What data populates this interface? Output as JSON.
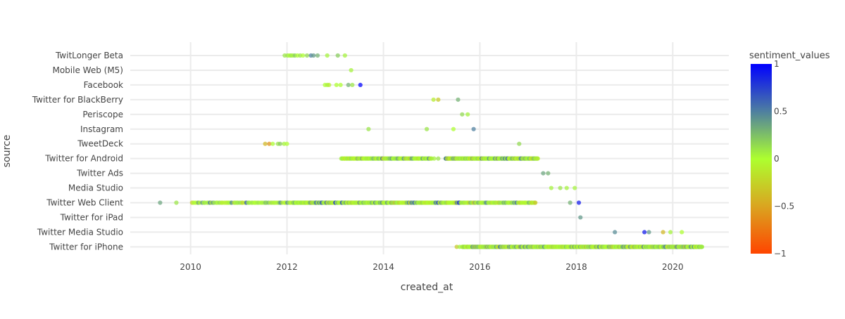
{
  "chart_data": {
    "type": "scatter",
    "title": "",
    "xlabel": "created_at",
    "ylabel": "source",
    "xlim": [
      "2008-10-01",
      "2021-03-01"
    ],
    "xticks": [
      {
        "value": "2010-01-01",
        "label": "2010"
      },
      {
        "value": "2012-01-01",
        "label": "2012"
      },
      {
        "value": "2014-01-01",
        "label": "2014"
      },
      {
        "value": "2016-01-01",
        "label": "2016"
      },
      {
        "value": "2018-01-01",
        "label": "2018"
      },
      {
        "value": "2020-01-01",
        "label": "2020"
      }
    ],
    "categories": [
      "TwitLonger Beta",
      "Mobile Web (M5)",
      "Facebook",
      "Twitter for BlackBerry",
      "Periscope",
      "Instagram",
      "TweetDeck",
      "Twitter for Android",
      "Twitter Ads",
      "Media Studio",
      "Twitter Web Client",
      "Twitter for iPad",
      "Twitter Media Studio",
      "Twitter for iPhone"
    ],
    "grid": true,
    "colorbar": {
      "title": "sentiment_values",
      "range": [
        -1,
        1
      ],
      "ticks": [
        {
          "value": 1,
          "label": "1"
        },
        {
          "value": 0.5,
          "label": "0.5"
        },
        {
          "value": 0,
          "label": "0"
        },
        {
          "value": -0.5,
          "label": "−0.5"
        },
        {
          "value": -1,
          "label": "−1"
        }
      ],
      "colorscale": [
        {
          "stop": -1,
          "color": "#ff4500"
        },
        {
          "stop": -0.5,
          "color": "#daa520"
        },
        {
          "stop": 0,
          "color": "#adff2f"
        },
        {
          "stop": 0.5,
          "color": "#4e7fa0"
        },
        {
          "stop": 1,
          "color": "#0000ff"
        }
      ]
    },
    "series": [
      {
        "category": "TwitLonger Beta",
        "points": [
          [
            "2011-12-15",
            0.1
          ],
          [
            "2012-01-05",
            0.1
          ],
          [
            "2012-01-20",
            0.0
          ],
          [
            "2012-02-01",
            0.1
          ],
          [
            "2012-02-15",
            0.05
          ],
          [
            "2012-03-01",
            0.2
          ],
          [
            "2012-03-20",
            0.0
          ],
          [
            "2012-04-10",
            0.1
          ],
          [
            "2012-05-01",
            0.0
          ],
          [
            "2012-06-01",
            0.15
          ],
          [
            "2012-07-01",
            0.5
          ],
          [
            "2012-07-20",
            0.4
          ],
          [
            "2012-08-20",
            0.3
          ],
          [
            "2012-11-01",
            0.05
          ],
          [
            "2013-01-20",
            0.2
          ],
          [
            "2013-03-15",
            0.05
          ]
        ]
      },
      {
        "category": "Mobile Web (M5)",
        "points": [
          [
            "2013-05-01",
            0.05
          ]
        ]
      },
      {
        "category": "Facebook",
        "points": [
          [
            "2012-10-15",
            0.0
          ],
          [
            "2012-11-01",
            0.05
          ],
          [
            "2012-11-15",
            -0.1
          ],
          [
            "2013-01-10",
            0.0
          ],
          [
            "2013-02-10",
            0.0
          ],
          [
            "2013-04-10",
            0.3
          ],
          [
            "2013-05-10",
            0.1
          ],
          [
            "2013-07-10",
            1.0
          ]
        ]
      },
      {
        "category": "Twitter for BlackBerry",
        "points": [
          [
            "2015-01-15",
            -0.1
          ],
          [
            "2015-02-20",
            -0.3
          ],
          [
            "2015-07-20",
            0.3
          ]
        ]
      },
      {
        "category": "Periscope",
        "points": [
          [
            "2015-08-20",
            0.15
          ],
          [
            "2015-10-01",
            0.05
          ]
        ]
      },
      {
        "category": "Instagram",
        "points": [
          [
            "2013-09-10",
            0.1
          ],
          [
            "2014-11-25",
            0.1
          ],
          [
            "2015-06-15",
            0.0
          ],
          [
            "2015-11-15",
            0.5
          ]
        ]
      },
      {
        "category": "TweetDeck",
        "points": [
          [
            "2011-07-20",
            -0.4
          ],
          [
            "2011-08-20",
            -0.6
          ],
          [
            "2011-09-15",
            0.0
          ],
          [
            "2011-10-25",
            0.1
          ],
          [
            "2011-11-10",
            0.2
          ],
          [
            "2011-12-10",
            0.05
          ],
          [
            "2012-01-01",
            0.0
          ],
          [
            "2016-10-25",
            0.15
          ]
        ]
      },
      {
        "category": "Twitter Ads",
        "points": [
          [
            "2017-04-25",
            0.35
          ],
          [
            "2017-06-01",
            0.3
          ]
        ]
      },
      {
        "category": "Media Studio",
        "points": [
          [
            "2017-06-25",
            0.05
          ],
          [
            "2017-09-01",
            0.1
          ],
          [
            "2017-10-20",
            0.05
          ],
          [
            "2017-12-20",
            0.05
          ]
        ]
      },
      {
        "category": "Twitter for iPad",
        "points": [
          [
            "2018-02-01",
            0.4
          ]
        ]
      },
      {
        "category": "Twitter Media Studio",
        "points": [
          [
            "2018-10-20",
            0.45
          ],
          [
            "2019-06-01",
            0.9
          ],
          [
            "2019-07-05",
            0.4
          ],
          [
            "2019-10-20",
            -0.4
          ],
          [
            "2019-12-15",
            0.05
          ],
          [
            "2020-03-10",
            0.0
          ]
        ]
      },
      {
        "category": "Twitter for Android",
        "ranges": [
          {
            "from": "2013-02-15",
            "to": "2014-12-31",
            "step_days": 6,
            "stagger": true
          },
          {
            "from": "2015-04-15",
            "to": "2017-03-15",
            "step_days": 4,
            "stagger": true
          }
        ],
        "points": [
          [
            "2015-01-20",
            0.05
          ],
          [
            "2015-02-20",
            0.1
          ]
        ]
      },
      {
        "category": "Twitter Web Client",
        "ranges": [
          {
            "from": "2010-01-15",
            "to": "2012-02-01",
            "step_days": 12
          },
          {
            "from": "2012-02-10",
            "to": "2014-02-01",
            "step_days": 5
          },
          {
            "from": "2014-02-01",
            "to": "2015-08-01",
            "step_days": 7
          },
          {
            "from": "2015-08-01",
            "to": "2017-03-01",
            "step_days": 9
          }
        ],
        "points": [
          [
            "2009-05-15",
            0.35
          ],
          [
            "2009-09-15",
            0.1
          ],
          [
            "2017-11-15",
            0.3
          ],
          [
            "2018-01-20",
            0.9
          ]
        ]
      },
      {
        "category": "Twitter for iPhone",
        "ranges": [
          {
            "from": "2015-08-20",
            "to": "2017-01-01",
            "step_days": 4,
            "stagger": true
          },
          {
            "from": "2017-01-01",
            "to": "2020-08-10",
            "step_days": 3,
            "stagger": true
          }
        ],
        "points": [
          [
            "2015-07-10",
            -0.3
          ],
          [
            "2015-08-01",
            0.05
          ]
        ]
      }
    ]
  }
}
